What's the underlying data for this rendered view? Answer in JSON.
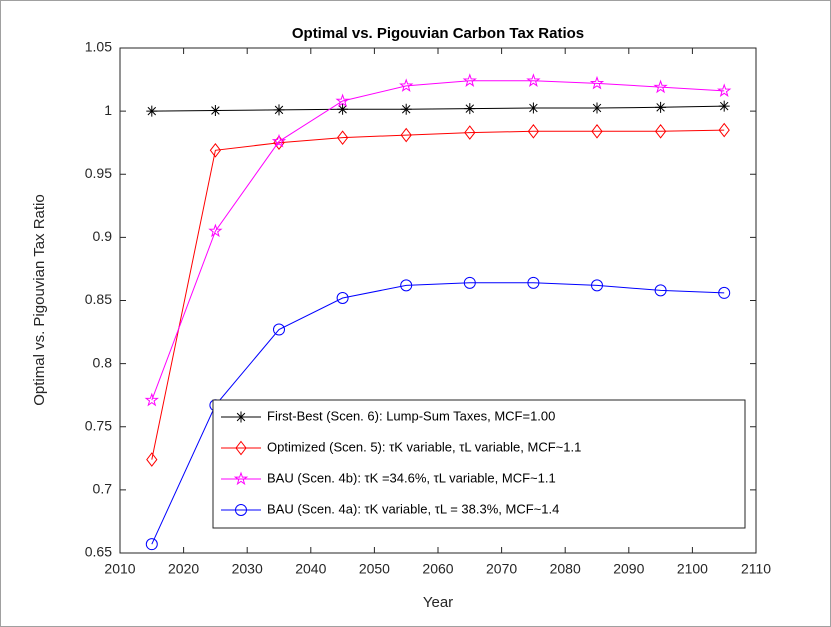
{
  "chart_data": {
    "type": "line",
    "title": "Optimal vs. Pigouvian Carbon Tax Ratios",
    "xlabel": "Year",
    "ylabel": "Optimal vs. Pigouvian Tax Ratio",
    "x": [
      2015,
      2025,
      2035,
      2045,
      2055,
      2065,
      2075,
      2085,
      2095,
      2105
    ],
    "xlim": [
      2010,
      2110
    ],
    "xticks": [
      2010,
      2020,
      2030,
      2040,
      2050,
      2060,
      2070,
      2080,
      2090,
      2100,
      2110
    ],
    "ylim": [
      0.65,
      1.05
    ],
    "yticks": [
      0.65,
      0.7,
      0.75,
      0.8,
      0.85,
      0.9,
      0.95,
      1,
      1.05
    ],
    "grid": false,
    "legend": "lower right",
    "series": [
      {
        "name": "First-Best (Scen. 6):    Lump-Sum Taxes,          MCF=1.00",
        "color": "#000000",
        "marker": "asterisk",
        "values": [
          1.0,
          1.0005,
          1.001,
          1.0015,
          1.0015,
          1.002,
          1.0025,
          1.0025,
          1.003,
          1.004
        ]
      },
      {
        "name": "Optimized (Scen. 5):  τK variable,  τL variable, MCF~1.1",
        "color": "#ff0000",
        "marker": "diamond",
        "values": [
          0.724,
          0.969,
          0.975,
          0.979,
          0.981,
          0.983,
          0.984,
          0.984,
          0.984,
          0.985
        ]
      },
      {
        "name": "BAU (Scen. 4b):            τK =34.6%,  τL variable, MCF~1.1",
        "color": "#ff00ff",
        "marker": "pentagram",
        "values": [
          0.771,
          0.905,
          0.976,
          1.008,
          1.02,
          1.024,
          1.024,
          1.022,
          1.019,
          1.016
        ]
      },
      {
        "name": "BAU (Scen. 4a):            τK variable,  τL = 38.3%, MCF~1.4",
        "color": "#0000ff",
        "marker": "circle",
        "values": [
          0.657,
          0.767,
          0.827,
          0.852,
          0.862,
          0.864,
          0.864,
          0.862,
          0.858,
          0.856
        ]
      }
    ]
  }
}
